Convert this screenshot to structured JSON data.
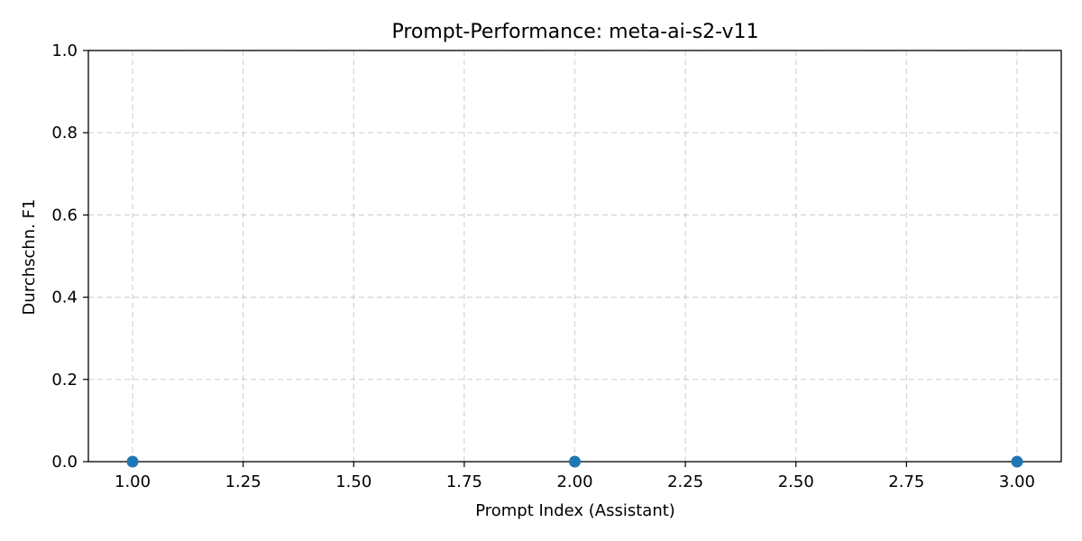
{
  "chart_data": {
    "type": "scatter",
    "title": "Prompt-Performance: meta-ai-s2-v11",
    "xlabel": "Prompt Index (Assistant)",
    "ylabel": "Durchschn. F1",
    "xlim": [
      0.9,
      3.1
    ],
    "ylim": [
      0.0,
      1.0
    ],
    "x_ticks": [
      "1.00",
      "1.25",
      "1.50",
      "1.75",
      "2.00",
      "2.25",
      "2.50",
      "2.75",
      "3.00"
    ],
    "y_ticks": [
      "0.0",
      "0.2",
      "0.4",
      "0.6",
      "0.8",
      "1.0"
    ],
    "grid": true,
    "series": [
      {
        "color": "#1f77b4",
        "points": [
          {
            "x": 1,
            "y": 0.0
          },
          {
            "x": 2,
            "y": 0.0
          },
          {
            "x": 3,
            "y": 0.0
          }
        ]
      }
    ]
  }
}
